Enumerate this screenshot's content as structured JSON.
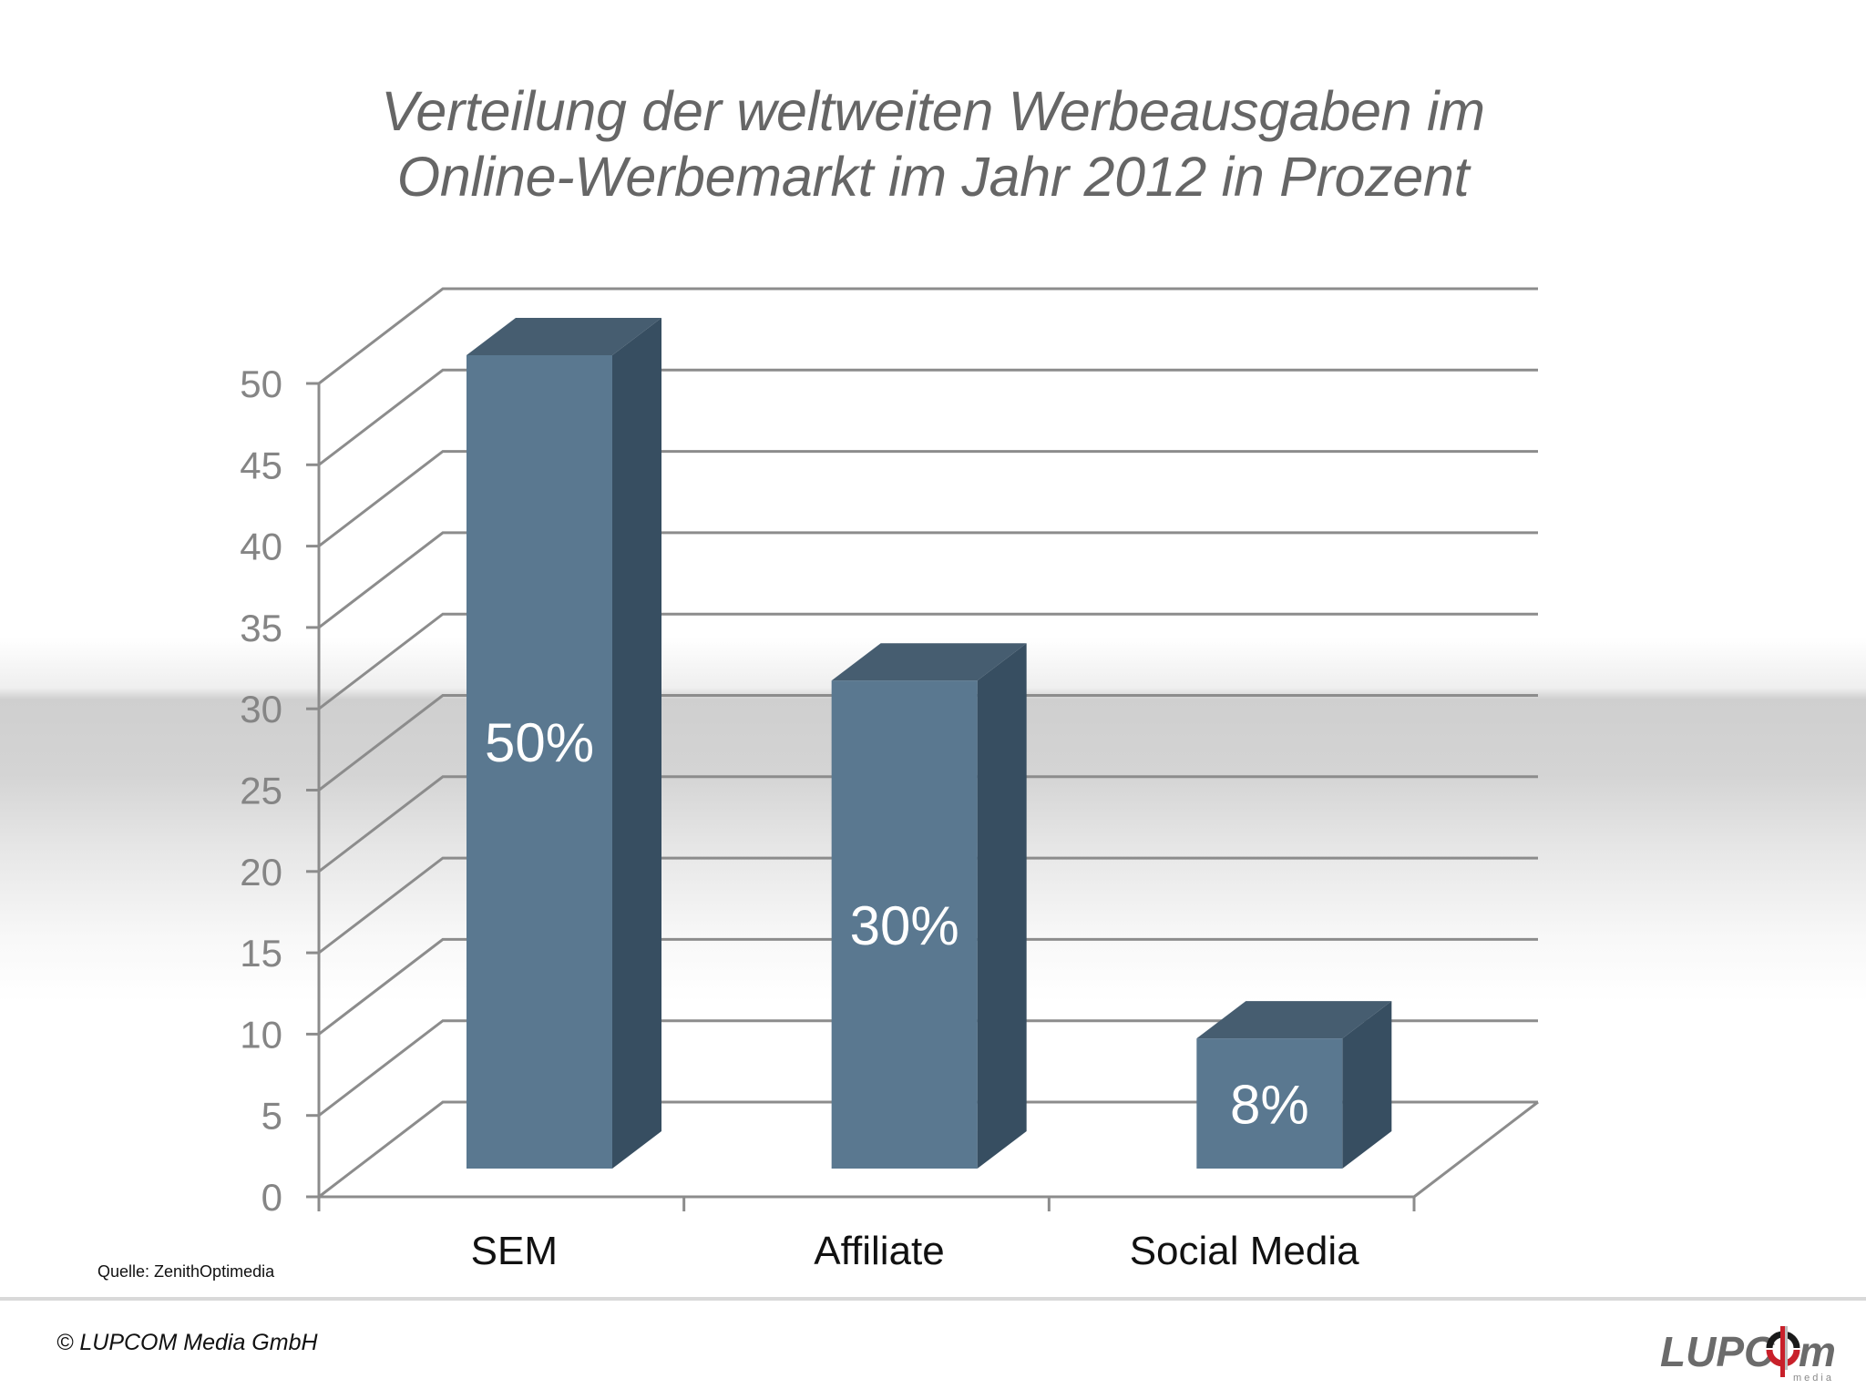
{
  "title": {
    "line1": "Verteilung der weltweiten Werbeausgaben im",
    "line2": "Online-Werbemarkt im Jahr 2012 in Prozent"
  },
  "colors": {
    "bar_front": "#5a7890",
    "bar_top": "#465d70",
    "bar_side": "#374e61",
    "grid": "#8c8c8c",
    "axis_text": "#858585",
    "title_text": "#666666",
    "logo_gray": "#6b6b6b",
    "logo_red": "#c8202a"
  },
  "chart_data": {
    "type": "bar",
    "style": "3d-column",
    "title": "Verteilung der weltweiten Werbeausgaben im Online-Werbemarkt im Jahr 2012 in Prozent",
    "categories": [
      "SEM",
      "Affiliate",
      "Social Media"
    ],
    "values": [
      50,
      30,
      8
    ],
    "data_labels": [
      "50%",
      "30%",
      "8%"
    ],
    "xlabel": "",
    "ylabel": "",
    "ylim": [
      0,
      50
    ],
    "yticks": [
      0,
      5,
      10,
      15,
      20,
      25,
      30,
      35,
      40,
      45,
      50
    ],
    "grid": true,
    "legend": null
  },
  "axis": {
    "y_ticks": [
      "0",
      "5",
      "10",
      "15",
      "20",
      "25",
      "30",
      "35",
      "40",
      "45",
      "50"
    ],
    "x_labels": [
      "SEM",
      "Affiliate",
      "Social Media"
    ]
  },
  "bars": [
    {
      "category": "SEM",
      "value": 50,
      "label": "50%"
    },
    {
      "category": "Affiliate",
      "value": 30,
      "label": "30%"
    },
    {
      "category": "Social Media",
      "value": 8,
      "label": "8%"
    }
  ],
  "footer": {
    "source": "Quelle: ZenithOptimedia",
    "copyright": "© LUPCOM Media GmbH",
    "logo_text": "LUPC",
    "logo_text_end": "m",
    "logo_sub": "media"
  }
}
